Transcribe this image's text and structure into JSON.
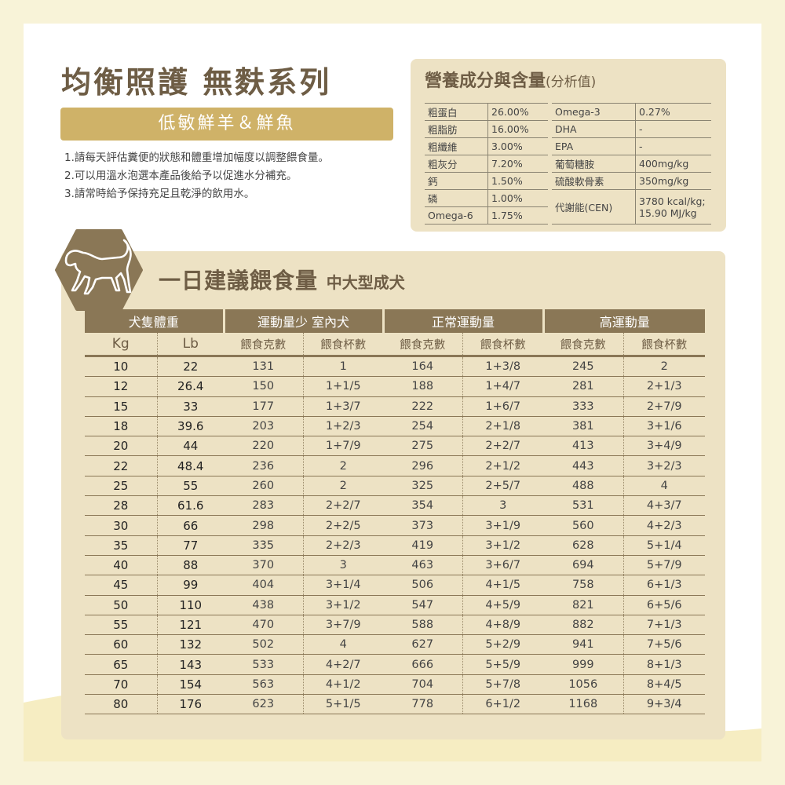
{
  "header": {
    "title": "均衡照護 無麩系列",
    "subtitle": "低敏鮮羊＆鮮魚"
  },
  "notes": [
    "1.請每天評估糞便的狀態和體重增加幅度以調整餵食量。",
    "2.可以用溫水泡選本產品後給予以促進水分補充。",
    "3.請常時給予保持充足且乾淨的飲用水。"
  ],
  "nutrition": {
    "title": "營養成分與含量",
    "title_suffix": "(分析值)",
    "left": [
      {
        "label": "粗蛋白",
        "value": "26.00%"
      },
      {
        "label": "粗脂肪",
        "value": "16.00%"
      },
      {
        "label": "粗纖維",
        "value": "3.00%"
      },
      {
        "label": "粗灰分",
        "value": "7.20%"
      },
      {
        "label": "鈣",
        "value": "1.50%"
      },
      {
        "label": "磷",
        "value": "1.00%"
      },
      {
        "label": "Omega-6",
        "value": "1.75%"
      }
    ],
    "right": [
      {
        "label": "Omega-3",
        "value": "0.27%"
      },
      {
        "label": "DHA",
        "value": "-"
      },
      {
        "label": "EPA",
        "value": "-"
      },
      {
        "label": "葡萄糖胺",
        "value": "400mg/kg"
      },
      {
        "label": "硫酸軟骨素",
        "value": "350mg/kg"
      },
      {
        "label": "代謝能(CEN)",
        "value": "3780 kcal/kg;",
        "value2": "15.90 MJ/kg"
      }
    ]
  },
  "feeding": {
    "icon": "dog-icon",
    "title": "一日建議餵食量",
    "title_suffix": "中大型成犬",
    "group_headers": [
      "犬隻體重",
      "運動量少 室內犬",
      "正常運動量",
      "高運動量"
    ],
    "sub_headers": [
      "Kg",
      "Lb",
      "餵食克數",
      "餵食杯數",
      "餵食克數",
      "餵食杯數",
      "餵食克數",
      "餵食杯數"
    ],
    "rows": [
      [
        "10",
        "22",
        "131",
        "1",
        "164",
        "1+3/8",
        "245",
        "2"
      ],
      [
        "12",
        "26.4",
        "150",
        "1+1/5",
        "188",
        "1+4/7",
        "281",
        "2+1/3"
      ],
      [
        "15",
        "33",
        "177",
        "1+3/7",
        "222",
        "1+6/7",
        "333",
        "2+7/9"
      ],
      [
        "18",
        "39.6",
        "203",
        "1+2/3",
        "254",
        "2+1/8",
        "381",
        "3+1/6"
      ],
      [
        "20",
        "44",
        "220",
        "1+7/9",
        "275",
        "2+2/7",
        "413",
        "3+4/9"
      ],
      [
        "22",
        "48.4",
        "236",
        "2",
        "296",
        "2+1/2",
        "443",
        "3+2/3"
      ],
      [
        "25",
        "55",
        "260",
        "2",
        "325",
        "2+5/7",
        "488",
        "4"
      ],
      [
        "28",
        "61.6",
        "283",
        "2+2/7",
        "354",
        "3",
        "531",
        "4+3/7"
      ],
      [
        "30",
        "66",
        "298",
        "2+2/5",
        "373",
        "3+1/9",
        "560",
        "4+2/3"
      ],
      [
        "35",
        "77",
        "335",
        "2+2/3",
        "419",
        "3+1/2",
        "628",
        "5+1/4"
      ],
      [
        "40",
        "88",
        "370",
        "3",
        "463",
        "3+6/7",
        "694",
        "5+7/9"
      ],
      [
        "45",
        "99",
        "404",
        "3+1/4",
        "506",
        "4+1/5",
        "758",
        "6+1/3"
      ],
      [
        "50",
        "110",
        "438",
        "3+1/2",
        "547",
        "4+5/9",
        "821",
        "6+5/6"
      ],
      [
        "55",
        "121",
        "470",
        "3+7/9",
        "588",
        "4+8/9",
        "882",
        "7+1/3"
      ],
      [
        "60",
        "132",
        "502",
        "4",
        "627",
        "5+2/9",
        "941",
        "7+5/6"
      ],
      [
        "65",
        "143",
        "533",
        "4+2/7",
        "666",
        "5+5/9",
        "999",
        "8+1/3"
      ],
      [
        "70",
        "154",
        "563",
        "4+1/2",
        "704",
        "5+7/8",
        "1056",
        "8+4/5"
      ],
      [
        "80",
        "176",
        "623",
        "5+1/5",
        "778",
        "6+1/2",
        "1168",
        "9+3/4"
      ]
    ]
  },
  "colors": {
    "background": "#f8f3d8",
    "accent_gold": "#cfb268",
    "panel_beige": "#ede2c4",
    "brown": "#6e5d45",
    "header_brown": "#8a7756"
  }
}
